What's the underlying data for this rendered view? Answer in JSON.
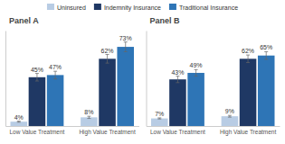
{
  "chart_data": [
    {
      "type": "bar",
      "title": "Panel A",
      "categories": [
        "Low Value Treatment",
        "High Value Treatment"
      ],
      "series": [
        {
          "name": "Uninsured",
          "color": "#b8cce4",
          "values": [
            4,
            8
          ],
          "errors": [
            0.5,
            1.0
          ],
          "value_labels": [
            "4%",
            "8%"
          ]
        },
        {
          "name": "Indemnity Insurance",
          "color": "#1f3864",
          "values": [
            45,
            62
          ],
          "errors": [
            3.5,
            4.0
          ],
          "value_labels": [
            "45%",
            "62%"
          ]
        },
        {
          "name": "Traditional Insurance",
          "color": "#2e75b6",
          "values": [
            47,
            73
          ],
          "errors": [
            3.5,
            4.5
          ],
          "value_labels": [
            "47%",
            "73%"
          ]
        }
      ],
      "ylim": [
        0,
        88
      ],
      "data_labels": true,
      "tick_labels": "x",
      "legend": "top"
    },
    {
      "type": "bar",
      "title": "Panel B",
      "categories": [
        "Low Value Treatment",
        "High Value Treatment"
      ],
      "series": [
        {
          "name": "Uninsured",
          "color": "#b8cce4",
          "values": [
            7,
            9
          ],
          "errors": [
            0.5,
            0.8
          ],
          "value_labels": [
            "7%",
            "9%"
          ]
        },
        {
          "name": "Indemnity Insurance",
          "color": "#1f3864",
          "values": [
            43,
            62
          ],
          "errors": [
            3.0,
            3.5
          ],
          "value_labels": [
            "43%",
            "62%"
          ]
        },
        {
          "name": "Traditional Insurance",
          "color": "#2e75b6",
          "values": [
            49,
            65
          ],
          "errors": [
            3.0,
            3.5
          ],
          "value_labels": [
            "49%",
            "65%"
          ]
        }
      ],
      "ylim": [
        0,
        88
      ],
      "data_labels": true,
      "tick_labels": "x"
    }
  ]
}
